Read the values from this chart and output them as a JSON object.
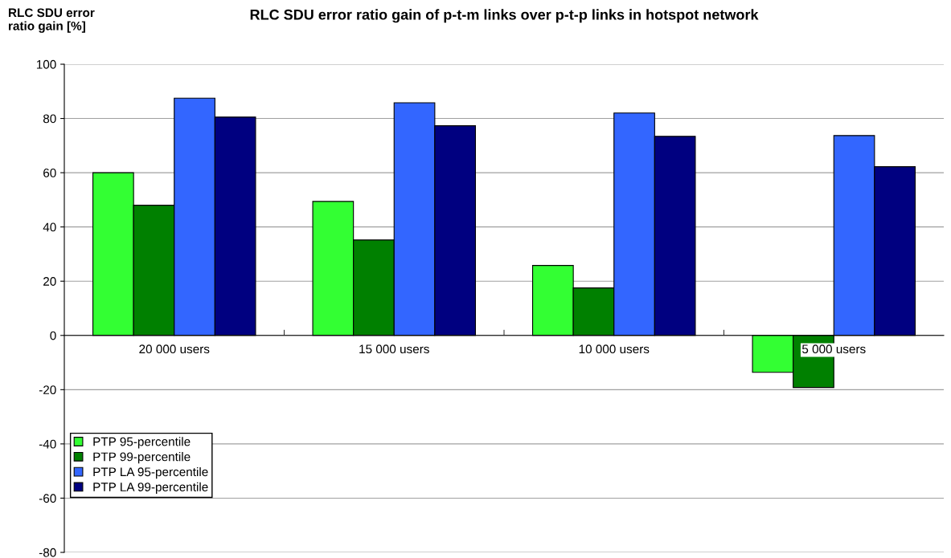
{
  "chart_data": {
    "type": "bar",
    "title": "RLC SDU error ratio gain of p-t-m links over p-t-p links in hotspot network",
    "ylabel": "RLC SDU error\nratio gain [%]",
    "categories": [
      "20 000 users",
      "15 000 users",
      "10 000 users",
      "5 000 users"
    ],
    "series": [
      {
        "name": "PTP 95-percentile",
        "color": "#33ff33",
        "values": [
          60,
          49.4,
          25.8,
          -13.6
        ]
      },
      {
        "name": "PTP 99-percentile",
        "color": "#008000",
        "values": [
          48,
          35.2,
          17.5,
          -19.2
        ]
      },
      {
        "name": "PTP LA 95-percentile",
        "color": "#3366ff",
        "values": [
          87.5,
          85.8,
          82,
          73.7
        ]
      },
      {
        "name": "PTP LA 99-percentile",
        "color": "#000080",
        "values": [
          80.5,
          77.3,
          73.4,
          62.2
        ]
      }
    ],
    "ylim": [
      -80,
      100
    ],
    "yticks": [
      -80,
      -60,
      -40,
      -20,
      0,
      20,
      40,
      60,
      80,
      100
    ],
    "grid": "y",
    "legend": "bottom left"
  }
}
